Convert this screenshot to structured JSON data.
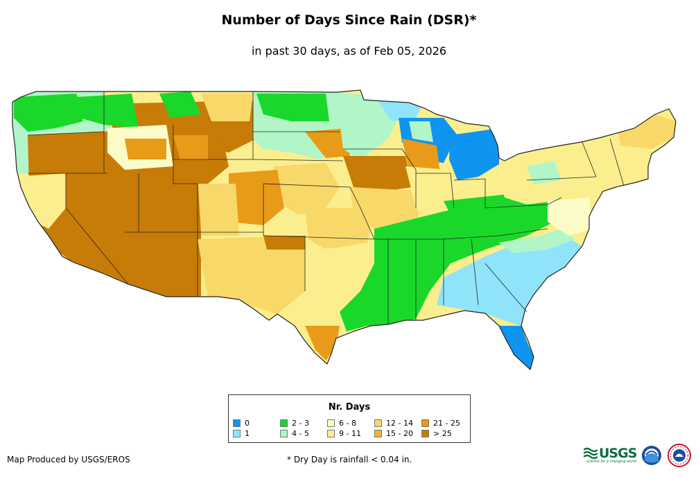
{
  "title": "Number of Days Since Rain (DSR)*",
  "subtitle": "in past 30 days, as of Feb 05, 2026",
  "legend": {
    "title": "Nr. Days",
    "items": [
      {
        "label": "0",
        "color": "#0f94f0"
      },
      {
        "label": "1",
        "color": "#8fe4fa"
      },
      {
        "label": "2 - 3",
        "color": "#19d82a"
      },
      {
        "label": "4 - 5",
        "color": "#b2f5c8"
      },
      {
        "label": "6 - 8",
        "color": "#fcfcc8"
      },
      {
        "label": "9 - 11",
        "color": "#fbee8e"
      },
      {
        "label": "12 - 14",
        "color": "#f8d868"
      },
      {
        "label": "15 - 20",
        "color": "#f2b52c"
      },
      {
        "label": "21 - 25",
        "color": "#e89b18"
      },
      {
        "label": "> 25",
        "color": "#c77c08"
      }
    ]
  },
  "credit": "Map Produced by USGS/EROS",
  "footnote": "* Dry Day is rainfall < 0.04 in.",
  "logos": {
    "usgs": "USGS",
    "usgs_tagline": "science for a changing world",
    "noaa": "noaa-logo",
    "nws": "nws-logo"
  }
}
